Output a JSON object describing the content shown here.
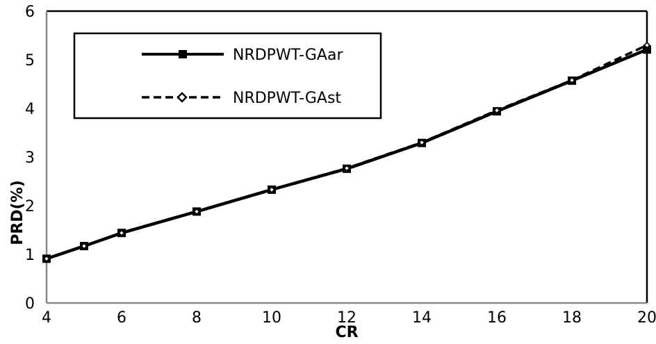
{
  "chart_data": {
    "type": "line",
    "title": "",
    "xlabel": "CR",
    "ylabel": "PRD(%)",
    "x": [
      4,
      5,
      6,
      8,
      10,
      12,
      14,
      16,
      18,
      20
    ],
    "xlim": [
      4,
      20
    ],
    "ylim": [
      0,
      6
    ],
    "x_ticks": [
      "4",
      "6",
      "8",
      "10",
      "12",
      "14",
      "16",
      "18",
      "20"
    ],
    "y_ticks": [
      "0",
      "1",
      "2",
      "3",
      "4",
      "5",
      "6"
    ],
    "grid": false,
    "legend_position": "upper-left, inside plot",
    "series": [
      {
        "name": "NRDPWT-GAar",
        "line": "solid",
        "marker": "filled-square",
        "values": [
          0.91,
          1.17,
          1.44,
          1.88,
          2.33,
          2.76,
          3.29,
          3.94,
          4.57,
          5.21
        ]
      },
      {
        "name": "NRDPWT-GAst",
        "line": "dashed",
        "marker": "hollow-diamond",
        "values": [
          0.91,
          1.17,
          1.44,
          1.88,
          2.33,
          2.77,
          3.3,
          3.96,
          4.58,
          5.3
        ]
      }
    ]
  },
  "legend": {
    "items": [
      {
        "label": "NRDPWT-GAar"
      },
      {
        "label": "NRDPWT-GAst"
      }
    ]
  }
}
